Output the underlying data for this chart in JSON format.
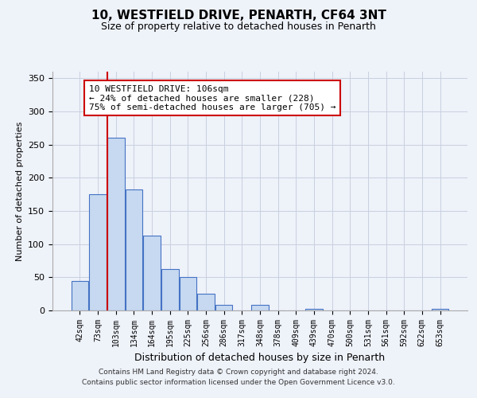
{
  "title": "10, WESTFIELD DRIVE, PENARTH, CF64 3NT",
  "subtitle": "Size of property relative to detached houses in Penarth",
  "xlabel": "Distribution of detached houses by size in Penarth",
  "ylabel": "Number of detached properties",
  "bar_labels": [
    "42sqm",
    "73sqm",
    "103sqm",
    "134sqm",
    "164sqm",
    "195sqm",
    "225sqm",
    "256sqm",
    "286sqm",
    "317sqm",
    "348sqm",
    "378sqm",
    "409sqm",
    "439sqm",
    "470sqm",
    "500sqm",
    "531sqm",
    "561sqm",
    "592sqm",
    "622sqm",
    "653sqm"
  ],
  "bar_values": [
    45,
    175,
    260,
    183,
    113,
    63,
    50,
    25,
    8,
    0,
    9,
    0,
    0,
    2,
    0,
    0,
    0,
    0,
    0,
    0,
    3
  ],
  "bar_color": "#c6d9f0",
  "bar_edge_color": "#4472c4",
  "vline_color": "#cc0000",
  "vline_index": 2,
  "annotation_title": "10 WESTFIELD DRIVE: 106sqm",
  "annotation_line1": "← 24% of detached houses are smaller (228)",
  "annotation_line2": "75% of semi-detached houses are larger (705) →",
  "annotation_box_color": "#ffffff",
  "annotation_box_edge": "#cc0000",
  "ylim": [
    0,
    360
  ],
  "yticks": [
    0,
    50,
    100,
    150,
    200,
    250,
    300,
    350
  ],
  "background_color": "#eef2f9",
  "grid_color": "#c8d0e0",
  "footer1": "Contains HM Land Registry data © Crown copyright and database right 2024.",
  "footer2": "Contains public sector information licensed under the Open Government Licence v3.0."
}
